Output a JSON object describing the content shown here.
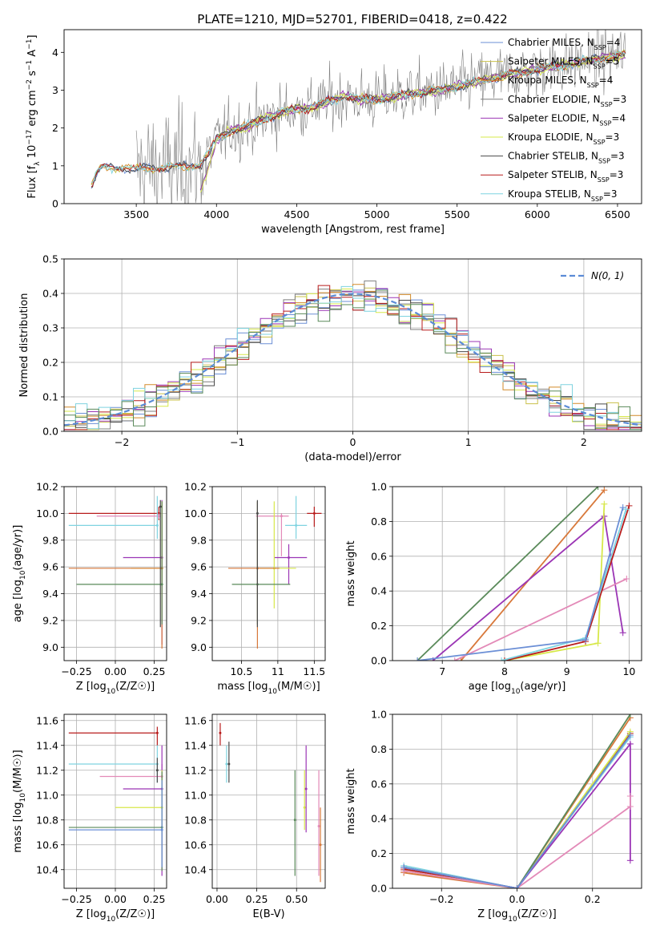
{
  "figure": {
    "title": "PLATE=1210, MJD=52701, FIBERID=0418, z=0.422"
  },
  "colors": {
    "chabrier_miles": "#6b8fd6",
    "salpeter_miles": "#c9c04a",
    "kroupa_miles": "#d28a2a",
    "chabrier_elodie": "#7f7f7f",
    "salpeter_elodie": "#9b35b5",
    "kroupa_elodie": "#d7e84a",
    "chabrier_stelib": "#4a4a4a",
    "salpeter_stelib": "#b81c1c",
    "kroupa_stelib": "#7fd3e0",
    "pink": "#e38ab8",
    "green": "#5a8a5a",
    "orange2": "#d8783a",
    "normal": "#5b8bd6",
    "grid": "#b0b0b0"
  },
  "chart_data": [
    {
      "id": "spectrum",
      "type": "line",
      "xlabel": "wavelength [Angstrom, rest frame]",
      "ylabel": "Flux [f_λ 10^-17 erg cm^-2 s^-1 A^-1]",
      "xlim": [
        3050,
        6650
      ],
      "ylim": [
        0,
        4.6
      ],
      "xticks": [
        3500,
        4000,
        4500,
        5000,
        5500,
        6000,
        6500
      ],
      "yticks": [
        0,
        1,
        2,
        3,
        4
      ],
      "grid": false,
      "legend_position": "right",
      "legend": [
        {
          "label": "Chabrier MILES, N",
          "sub": "SSP",
          "tail": "=4",
          "color_key": "chabrier_miles"
        },
        {
          "label": "Salpeter MILES, N",
          "sub": "SSP",
          "tail": "=5",
          "color_key": "salpeter_miles"
        },
        {
          "label": "Kroupa MILES, N",
          "sub": "SSP",
          "tail": "=4",
          "color_key": "kroupa_miles"
        },
        {
          "label": "Chabrier ELODIE, N",
          "sub": "SSP",
          "tail": "=3",
          "color_key": "chabrier_elodie"
        },
        {
          "label": "Salpeter ELODIE, N",
          "sub": "SSP",
          "tail": "=4",
          "color_key": "salpeter_elodie"
        },
        {
          "label": "Kroupa ELODIE, N",
          "sub": "SSP",
          "tail": "=3",
          "color_key": "kroupa_elodie"
        },
        {
          "label": "Chabrier STELIB, N",
          "sub": "SSP",
          "tail": "=3",
          "color_key": "chabrier_stelib"
        },
        {
          "label": "Salpeter STELIB, N",
          "sub": "SSP",
          "tail": "=3",
          "color_key": "salpeter_stelib"
        },
        {
          "label": "Kroupa STELIB, N",
          "sub": "SSP",
          "tail": "=3",
          "color_key": "kroupa_stelib"
        }
      ],
      "continuum": {
        "x": [
          3220,
          3260,
          3300,
          3400,
          3500,
          3600,
          3700,
          3800,
          3900,
          3950,
          4000,
          4100,
          4200,
          4300,
          4400,
          4500,
          4600,
          4700,
          4800,
          4900,
          5000,
          5200,
          5400,
          5600,
          5800,
          6000,
          6200,
          6400,
          6550
        ],
        "y": [
          0.45,
          0.85,
          0.95,
          0.98,
          0.9,
          0.95,
          0.95,
          1.0,
          1.05,
          1.3,
          1.7,
          1.95,
          2.05,
          2.25,
          2.4,
          2.5,
          2.55,
          2.7,
          2.85,
          2.75,
          2.75,
          2.9,
          3.0,
          3.2,
          3.4,
          3.55,
          3.7,
          3.85,
          3.95
        ]
      }
    },
    {
      "id": "residuals",
      "type": "histogram",
      "xlabel": "(data-model)/error",
      "ylabel": "Normed distribution",
      "xlim": [
        -2.5,
        2.5
      ],
      "ylim": [
        0,
        0.5
      ],
      "xticks": [
        -2,
        -1,
        0,
        1,
        2
      ],
      "yticks": [
        0.0,
        0.1,
        0.2,
        0.3,
        0.4,
        0.5
      ],
      "grid": true,
      "legend_position": "top-right",
      "legend_label": "N(0, 1)",
      "bin_width": 0.1,
      "bin_start": -2.5
    },
    {
      "id": "age_vs_Z",
      "type": "errorbar",
      "xlabel": "Z [log10(Z/Z☉)]",
      "ylabel": "age [log10(age/yr)]",
      "xlim": [
        -0.33,
        0.33
      ],
      "ylim": [
        8.9,
        10.2
      ],
      "xticks": [
        -0.25,
        0.0,
        0.25
      ],
      "yticks": [
        9.0,
        9.2,
        9.4,
        9.6,
        9.8,
        10.0,
        10.2
      ],
      "grid": true,
      "points": [
        {
          "color_key": "salpeter_stelib",
          "x": 0.28,
          "xlo": 0.58,
          "xhi": 0.0,
          "y": 10.0,
          "ylo": 0.05,
          "yhi": 0.05
        },
        {
          "color_key": "pink",
          "x": 0.28,
          "xlo": 0.4,
          "xhi": 0.0,
          "y": 9.98,
          "ylo": 0.02,
          "yhi": 0.02
        },
        {
          "color_key": "kroupa_stelib",
          "x": 0.27,
          "xlo": 0.57,
          "xhi": 0.0,
          "y": 9.91,
          "ylo": 0.1,
          "yhi": 0.22
        },
        {
          "color_key": "salpeter_elodie",
          "x": 0.3,
          "xlo": 0.25,
          "xhi": 0.0,
          "y": 9.67,
          "ylo": 0.65,
          "yhi": 0.43
        },
        {
          "color_key": "kroupa_elodie",
          "x": 0.3,
          "xlo": 0.2,
          "xhi": 0.0,
          "y": 9.59,
          "ylo": 0.1,
          "yhi": 0.5
        },
        {
          "color_key": "orange2",
          "x": 0.3,
          "xlo": 0.6,
          "xhi": 0.0,
          "y": 9.59,
          "ylo": 0.6,
          "yhi": 0.5
        },
        {
          "color_key": "green",
          "x": 0.3,
          "xlo": 0.55,
          "xhi": 0.0,
          "y": 9.47,
          "ylo": 0.3,
          "yhi": 0.62
        },
        {
          "color_key": "chabrier_stelib",
          "x": 0.29,
          "xlo": 0.0,
          "xhi": 0.0,
          "y": 10.05,
          "ylo": 0.9,
          "yhi": 0.05
        }
      ]
    },
    {
      "id": "age_vs_mass",
      "type": "errorbar",
      "xlabel": "mass [log10(M/M☉)]",
      "ylabel": "",
      "xlim": [
        10.1,
        11.65
      ],
      "ylim": [
        8.9,
        10.2
      ],
      "xticks": [
        10.5,
        11.0,
        11.5
      ],
      "yticks": [
        9.0,
        9.2,
        9.4,
        9.6,
        9.8,
        10.0,
        10.2
      ],
      "grid": true,
      "points": [
        {
          "color_key": "salpeter_stelib",
          "x": 11.5,
          "xlo": 0.1,
          "xhi": 0.1,
          "y": 10.0,
          "ylo": 0.1,
          "yhi": 0.05
        },
        {
          "color_key": "kroupa_stelib",
          "x": 11.25,
          "xlo": 0.15,
          "xhi": 0.15,
          "y": 9.91,
          "ylo": 0.1,
          "yhi": 0.22
        },
        {
          "color_key": "pink",
          "x": 11.05,
          "xlo": 0.35,
          "xhi": 0.1,
          "y": 9.98,
          "ylo": 0.3,
          "yhi": 0.02
        },
        {
          "color_key": "salpeter_elodie",
          "x": 11.15,
          "xlo": 0.2,
          "xhi": 0.25,
          "y": 9.67,
          "ylo": 0.2,
          "yhi": 0.1
        },
        {
          "color_key": "kroupa_elodie",
          "x": 10.95,
          "xlo": 0.2,
          "xhi": 0.3,
          "y": 9.59,
          "ylo": 0.3,
          "yhi": 0.5
        },
        {
          "color_key": "orange2",
          "x": 10.72,
          "xlo": 0.4,
          "xhi": 0.3,
          "y": 9.59,
          "ylo": 0.6,
          "yhi": 0.5
        },
        {
          "color_key": "green",
          "x": 10.72,
          "xlo": 0.35,
          "xhi": 0.45,
          "y": 9.47,
          "ylo": 0.3,
          "yhi": 0.62
        },
        {
          "color_key": "chabrier_stelib",
          "x": 10.72,
          "xlo": 0.0,
          "xhi": 0.0,
          "y": 10.0,
          "ylo": 0.85,
          "yhi": 0.1
        }
      ]
    },
    {
      "id": "mass_weight_vs_age",
      "type": "line",
      "xlabel": "age [log10(age/yr)]",
      "ylabel": "mass weight",
      "xlim": [
        6.2,
        10.2
      ],
      "ylim": [
        0,
        1.0
      ],
      "xticks": [
        7,
        8,
        9,
        10
      ],
      "yticks": [
        0.0,
        0.2,
        0.4,
        0.6,
        0.8,
        1.0
      ],
      "grid": true,
      "series": [
        {
          "color_key": "green",
          "x": [
            6.6,
            9.5
          ],
          "y": [
            0.0,
            1.0
          ]
        },
        {
          "color_key": "orange2",
          "x": [
            7.3,
            9.6
          ],
          "y": [
            0.0,
            0.98
          ]
        },
        {
          "color_key": "salpeter_elodie",
          "x": [
            6.85,
            9.6,
            9.9
          ],
          "y": [
            0.0,
            0.83,
            0.16
          ]
        },
        {
          "color_key": "pink",
          "x": [
            7.2,
            9.96
          ],
          "y": [
            0.0,
            0.47
          ]
        },
        {
          "color_key": "kroupa_elodie",
          "x": [
            8.0,
            9.5,
            9.6
          ],
          "y": [
            0.0,
            0.1,
            0.9
          ]
        },
        {
          "color_key": "salpeter_stelib",
          "x": [
            8.0,
            9.3,
            10.0
          ],
          "y": [
            0.0,
            0.11,
            0.89
          ]
        },
        {
          "color_key": "kroupa_stelib",
          "x": [
            7.95,
            9.3,
            9.95
          ],
          "y": [
            0.0,
            0.13,
            0.87
          ]
        },
        {
          "color_key": "chabrier_miles",
          "x": [
            6.6,
            9.3,
            9.9
          ],
          "y": [
            0.0,
            0.12,
            0.88
          ]
        }
      ]
    },
    {
      "id": "mass_vs_Z",
      "type": "errorbar",
      "xlabel": "Z [log10(Z/Z☉)]",
      "ylabel": "mass [log10(M/M☉)]",
      "xlim": [
        -0.33,
        0.33
      ],
      "ylim": [
        10.25,
        11.65
      ],
      "xticks": [
        -0.25,
        0.0,
        0.25
      ],
      "yticks": [
        10.4,
        10.6,
        10.8,
        11.0,
        11.2,
        11.4,
        11.6
      ],
      "grid": true,
      "points": [
        {
          "color_key": "salpeter_stelib",
          "x": 0.27,
          "xlo": 0.57,
          "xhi": 0.0,
          "y": 11.5,
          "ylo": 0.1,
          "yhi": 0.05
        },
        {
          "color_key": "kroupa_stelib",
          "x": 0.27,
          "xlo": 0.57,
          "xhi": 0.0,
          "y": 11.25,
          "ylo": 0.15,
          "yhi": 0.15
        },
        {
          "color_key": "pink",
          "x": 0.3,
          "xlo": 0.4,
          "xhi": 0.0,
          "y": 11.15,
          "ylo": 0.2,
          "yhi": 0.1
        },
        {
          "color_key": "salpeter_elodie",
          "x": 0.3,
          "xlo": 0.25,
          "xhi": 0.0,
          "y": 11.05,
          "ylo": 0.7,
          "yhi": 0.35
        },
        {
          "color_key": "kroupa_elodie",
          "x": 0.3,
          "xlo": 0.3,
          "xhi": 0.0,
          "y": 10.9,
          "ylo": 0.2,
          "yhi": 0.3
        },
        {
          "color_key": "green",
          "x": 0.3,
          "xlo": 0.6,
          "xhi": 0.0,
          "y": 10.74,
          "ylo": 0.35,
          "yhi": 0.45
        },
        {
          "color_key": "chabrier_miles",
          "x": 0.3,
          "xlo": 0.6,
          "xhi": 0.0,
          "y": 10.72,
          "ylo": 0.3,
          "yhi": 0.4
        },
        {
          "color_key": "chabrier_stelib",
          "x": 0.27,
          "xlo": 0.0,
          "xhi": 0.0,
          "y": 11.2,
          "ylo": 0.1,
          "yhi": 0.1
        }
      ]
    },
    {
      "id": "mass_vs_ebv",
      "type": "errorbar",
      "xlabel": "E(B-V)",
      "ylabel": "",
      "xlim": [
        -0.03,
        0.68
      ],
      "ylim": [
        10.25,
        11.65
      ],
      "xticks": [
        0.0,
        0.25,
        0.5
      ],
      "xticklabels": [
        "0.00",
        "0.25",
        "0.50"
      ],
      "yticks": [
        10.4,
        10.6,
        10.8,
        11.0,
        11.2,
        11.4,
        11.6
      ],
      "grid": true,
      "points": [
        {
          "color_key": "salpeter_stelib",
          "x": 0.02,
          "y": 11.5,
          "ylo": 0.1,
          "yhi": 0.08
        },
        {
          "color_key": "kroupa_stelib",
          "x": 0.06,
          "y": 11.25,
          "ylo": 0.15,
          "yhi": 0.15
        },
        {
          "color_key": "chabrier_stelib",
          "x": 0.075,
          "y": 11.25,
          "ylo": 0.15,
          "yhi": 0.18
        },
        {
          "color_key": "green",
          "x": 0.49,
          "y": 10.8,
          "ylo": 0.45,
          "yhi": 0.4
        },
        {
          "color_key": "kroupa_elodie",
          "x": 0.55,
          "y": 10.9,
          "ylo": 0.18,
          "yhi": 0.3
        },
        {
          "color_key": "salpeter_elodie",
          "x": 0.56,
          "y": 11.05,
          "ylo": 0.35,
          "yhi": 0.35
        },
        {
          "color_key": "pink",
          "x": 0.64,
          "y": 10.75,
          "ylo": 0.4,
          "yhi": 0.45
        },
        {
          "color_key": "orange2",
          "x": 0.65,
          "y": 10.6,
          "ylo": 0.3,
          "yhi": 0.3
        }
      ]
    },
    {
      "id": "mass_weight_vs_Z",
      "type": "line",
      "xlabel": "Z [log10(Z/Z☉)]",
      "ylabel": "mass weight",
      "xlim": [
        -0.33,
        0.33
      ],
      "ylim": [
        0,
        1.0
      ],
      "xticks": [
        -0.2,
        0.0,
        0.2
      ],
      "yticks": [
        0.0,
        0.2,
        0.4,
        0.6,
        0.8,
        1.0
      ],
      "grid": true,
      "series": [
        {
          "color_key": "kroupa_stelib",
          "x": [
            -0.3,
            0.0,
            0.3
          ],
          "y": [
            0.13,
            0.0,
            0.87
          ]
        },
        {
          "color_key": "salpeter_stelib",
          "x": [
            -0.3,
            0.0,
            0.3
          ],
          "y": [
            0.11,
            0.0,
            0.89
          ]
        },
        {
          "color_key": "kroupa_elodie",
          "x": [
            -0.3,
            0.0,
            0.3
          ],
          "y": [
            0.1,
            0.0,
            0.9
          ]
        },
        {
          "color_key": "orange2",
          "x": [
            -0.3,
            0.0,
            0.3
          ],
          "y": [
            0.09,
            0.0,
            0.98
          ]
        },
        {
          "color_key": "green",
          "x": [
            -0.3,
            0.0,
            0.3
          ],
          "y": [
            0.12,
            0.0,
            1.0
          ]
        },
        {
          "color_key": "salpeter_elodie",
          "x": [
            -0.3,
            0.0,
            0.3,
            0.3
          ],
          "y": [
            0.12,
            0.0,
            0.83,
            0.16
          ]
        },
        {
          "color_key": "pink",
          "x": [
            -0.3,
            0.0,
            0.3,
            0.3
          ],
          "y": [
            0.1,
            0.0,
            0.47,
            0.53
          ]
        },
        {
          "color_key": "chabrier_miles",
          "x": [
            -0.3,
            0.0,
            0.3
          ],
          "y": [
            0.12,
            0.0,
            0.88
          ]
        }
      ]
    }
  ]
}
